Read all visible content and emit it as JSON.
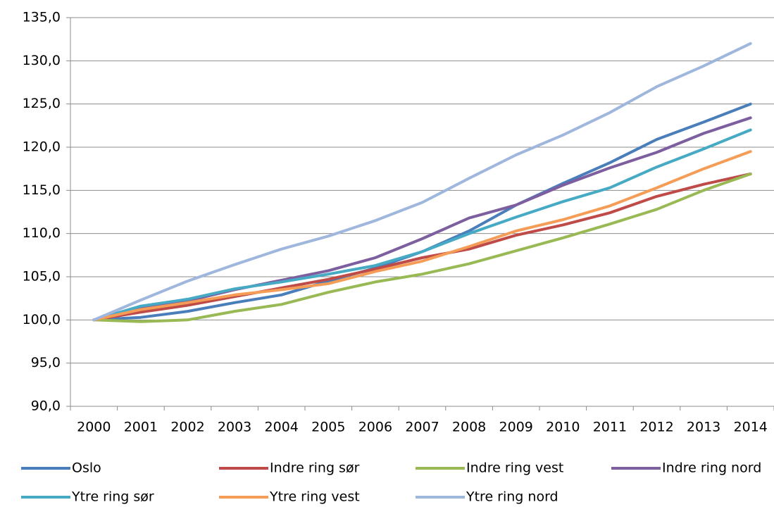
{
  "chart_data": {
    "type": "line",
    "categories": [
      "2000",
      "2001",
      "2002",
      "2003",
      "2004",
      "2005",
      "2006",
      "2007",
      "2008",
      "2009",
      "2010",
      "2011",
      "2012",
      "2013",
      "2014"
    ],
    "ylim": [
      90,
      135
    ],
    "yticks": [
      {
        "value": 90,
        "label": "90,0"
      },
      {
        "value": 95,
        "label": "95,0"
      },
      {
        "value": 100,
        "label": "100,0"
      },
      {
        "value": 105,
        "label": "105,0"
      },
      {
        "value": 110,
        "label": "110,0"
      },
      {
        "value": 115,
        "label": "115,0"
      },
      {
        "value": 120,
        "label": "120,0"
      },
      {
        "value": 125,
        "label": "125,0"
      },
      {
        "value": 130,
        "label": "130,0"
      },
      {
        "value": 135,
        "label": "135,0"
      }
    ],
    "grid": true,
    "legend": "bottom",
    "series": [
      {
        "name": "Oslo",
        "color": "#4a7ebb",
        "values": [
          100,
          100.3,
          101.0,
          102.0,
          102.9,
          104.5,
          106.0,
          107.9,
          110.3,
          113.3,
          115.8,
          118.2,
          120.9,
          122.9,
          125.0
        ]
      },
      {
        "name": "Indre ring sør",
        "color": "#be4b48",
        "values": [
          100,
          100.9,
          101.7,
          102.7,
          103.7,
          104.7,
          105.9,
          107.2,
          108.2,
          109.8,
          111.0,
          112.4,
          114.3,
          115.7,
          116.9
        ]
      },
      {
        "name": "Indre ring vest",
        "color": "#98b954",
        "values": [
          100,
          99.8,
          100.0,
          101.0,
          101.8,
          103.2,
          104.4,
          105.3,
          106.5,
          108.0,
          109.5,
          111.1,
          112.8,
          115.0,
          116.9
        ]
      },
      {
        "name": "Indre ring nord",
        "color": "#7d5fa0",
        "values": [
          100,
          101.4,
          102.2,
          103.5,
          104.6,
          105.7,
          107.2,
          109.4,
          111.8,
          113.3,
          115.6,
          117.6,
          119.4,
          121.6,
          123.4
        ]
      },
      {
        "name": "Ytre ring sør",
        "color": "#46aac5",
        "values": [
          100,
          101.6,
          102.4,
          103.6,
          104.4,
          105.3,
          106.3,
          107.9,
          110.0,
          111.9,
          113.7,
          115.3,
          117.7,
          119.8,
          122.0
        ]
      },
      {
        "name": "Ytre ring vest",
        "color": "#f59d56",
        "values": [
          100,
          101.2,
          102.0,
          102.9,
          103.5,
          104.2,
          105.6,
          106.8,
          108.5,
          110.3,
          111.6,
          113.2,
          115.3,
          117.5,
          119.5
        ]
      },
      {
        "name": "Ytre ring nord",
        "color": "#a0b7dd",
        "values": [
          100,
          102.3,
          104.5,
          106.4,
          108.2,
          109.7,
          111.5,
          113.6,
          116.4,
          119.1,
          121.4,
          124.0,
          127.0,
          129.4,
          132.0
        ]
      }
    ]
  }
}
